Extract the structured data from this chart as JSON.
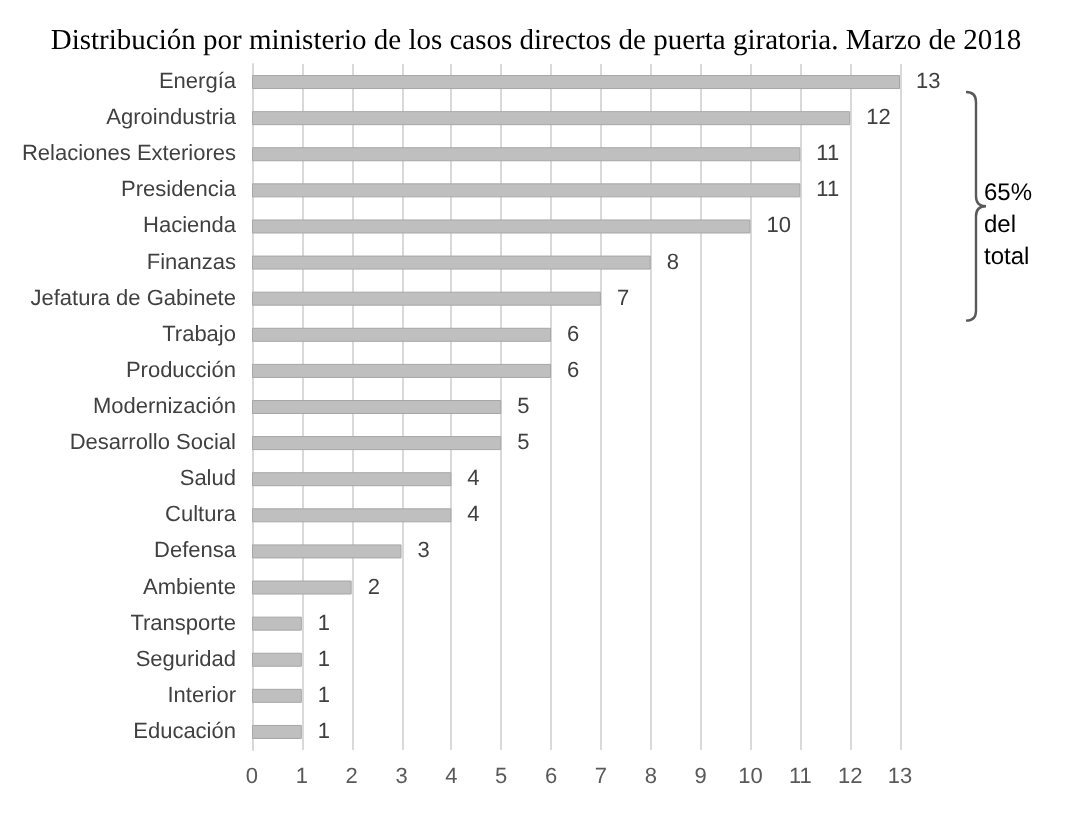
{
  "chart_data": {
    "type": "bar",
    "orientation": "horizontal",
    "title": "Distribución por ministerio de los casos directos de puerta giratoria. Marzo de 2018",
    "categories": [
      "Energía",
      "Agroindustria",
      "Relaciones Exteriores",
      "Presidencia",
      "Hacienda",
      "Finanzas",
      "Jefatura de Gabinete",
      "Trabajo",
      "Producción",
      "Modernización",
      "Desarrollo Social",
      "Salud",
      "Cultura",
      "Defensa",
      "Ambiente",
      "Transporte",
      "Seguridad",
      "Interior",
      "Educación"
    ],
    "values": [
      13,
      12,
      11,
      11,
      10,
      8,
      7,
      6,
      6,
      5,
      5,
      4,
      4,
      3,
      2,
      1,
      1,
      1,
      1
    ],
    "color": "#bfbfbf",
    "xlim": [
      0,
      13
    ],
    "xticks": [
      0,
      1,
      2,
      3,
      4,
      5,
      6,
      7,
      8,
      9,
      10,
      11,
      12,
      13
    ],
    "grid": "x",
    "data_labels": true,
    "annotations": [
      "65%\ndel\ntotal"
    ]
  }
}
